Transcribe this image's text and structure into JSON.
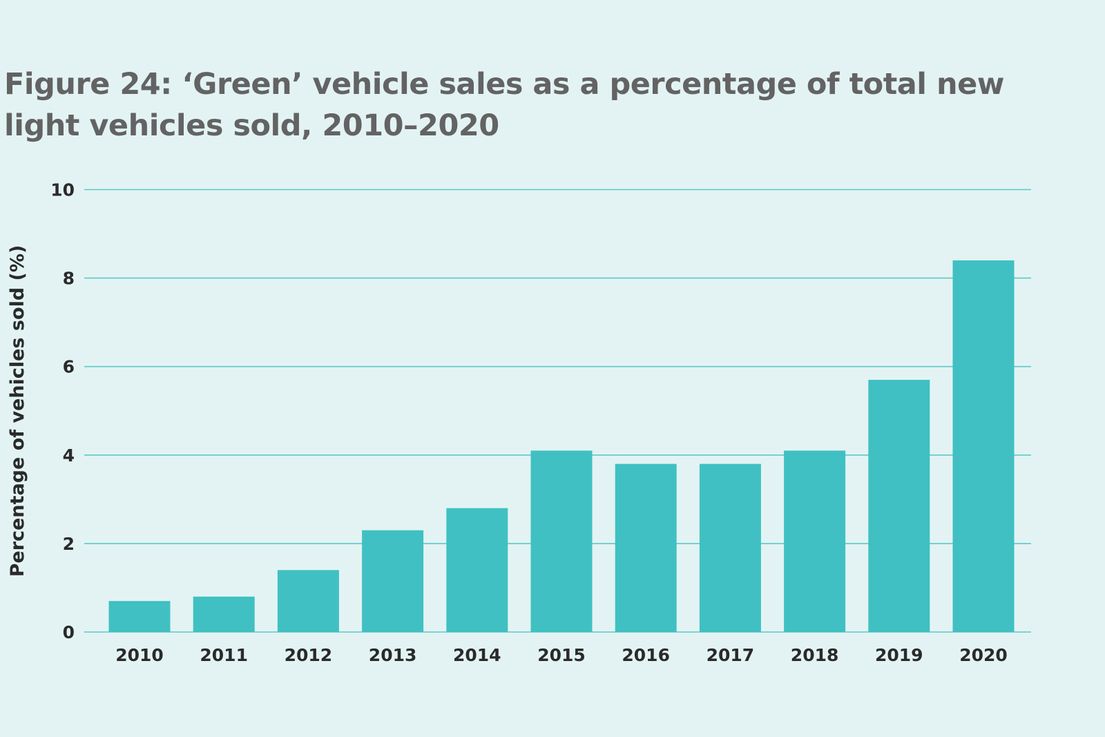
{
  "chart_data": {
    "type": "bar",
    "title": "Figure 24: ‘Green’ vehicle sales as a percentage of total new light vehicles sold, 2010–2020",
    "xlabel": "",
    "ylabel": "Percentage of vehicles sold (%)",
    "categories": [
      "2010",
      "2011",
      "2012",
      "2013",
      "2014",
      "2015",
      "2016",
      "2017",
      "2018",
      "2019",
      "2020"
    ],
    "values": [
      0.7,
      0.8,
      1.4,
      2.3,
      2.8,
      4.1,
      3.8,
      3.8,
      4.1,
      5.7,
      8.4
    ],
    "ylim": [
      0,
      10
    ],
    "yticks": [
      "0",
      "2",
      "4",
      "6",
      "8",
      "10"
    ],
    "grid": true,
    "legend": "none",
    "colors": {
      "bar": "#40c0c2",
      "grid": "#5cc8c8",
      "background": "#e3f3f3",
      "title": "#636363",
      "text": "#2a2a2a"
    }
  }
}
